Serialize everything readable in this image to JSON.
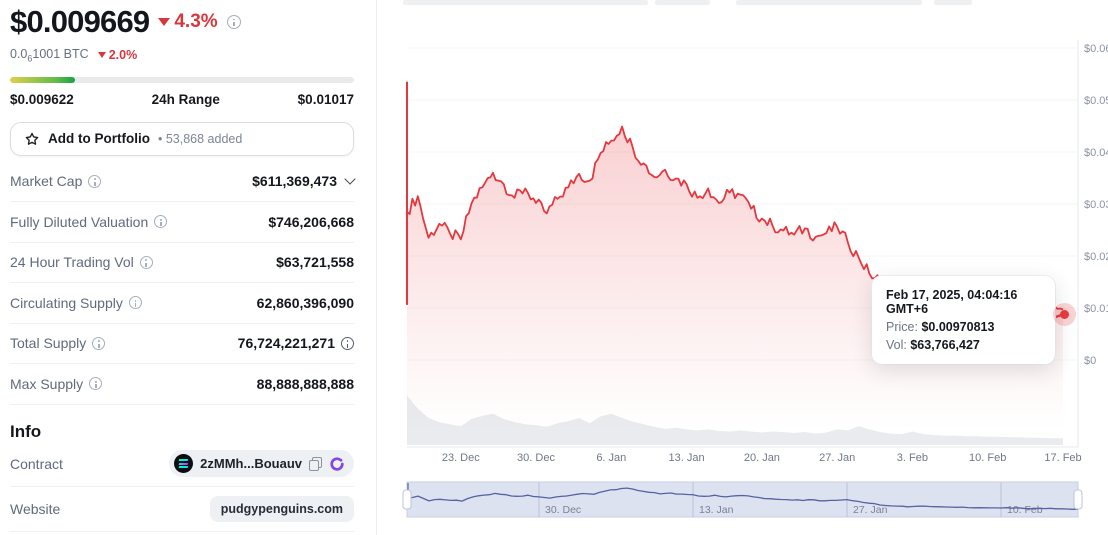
{
  "header": {
    "price": "$0.009669",
    "change_pct": "4.3%",
    "btc_price_lead": "0.0",
    "btc_price_sub": "6",
    "btc_price_tail": "1001 BTC",
    "btc_change_pct": "2.0%",
    "range_low": "$0.009622",
    "range_label": "24h Range",
    "range_high": "$0.01017",
    "range_fill_pct": 19
  },
  "portfolio": {
    "label": "Add to Portfolio",
    "added_count": "• 53,868 added"
  },
  "stats": {
    "rows": [
      {
        "label": "Market Cap",
        "value": "$611,369,473",
        "expandable": true
      },
      {
        "label": "Fully Diluted Valuation",
        "value": "$746,206,668"
      },
      {
        "label": "24 Hour Trading Vol",
        "value": "$63,721,558"
      },
      {
        "label": "Circulating Supply",
        "value": "62,860,396,090"
      },
      {
        "label": "Total Supply",
        "value": "76,724,221,271",
        "value_info": true
      },
      {
        "label": "Max Supply",
        "value": "88,888,888,888"
      }
    ]
  },
  "info_section": {
    "heading": "Info",
    "contract": {
      "label": "Contract",
      "address": "2zMMh...Bouauv"
    },
    "website": {
      "label": "Website",
      "value": "pudgypenguins.com"
    }
  },
  "tooltip": {
    "title": "Feb 17, 2025, 04:04:16 GMT+6",
    "price_label": "Price:",
    "price_value": "$0.00970813",
    "vol_label": "Vol:",
    "vol_value": "$63,766,427"
  },
  "icons": {
    "info": "circle-i-outline",
    "down_triangle": "triangle-down-red",
    "star": "star-outline",
    "chevron": "chevron-down",
    "solana": "solana-logo",
    "copy": "copy-outline",
    "explorer": "purple-swirl",
    "nav_handles": "drag-handles"
  },
  "chart_data": {
    "type": "line",
    "x_unit": "date",
    "dates": [
      "Dec 18",
      "Dec 19",
      "Dec 20",
      "Dec 21",
      "Dec 22",
      "Dec 23",
      "Dec 24",
      "Dec 25",
      "Dec 26",
      "Dec 27",
      "Dec 28",
      "Dec 29",
      "Dec 30",
      "Dec 31",
      "Jan 1",
      "Jan 2",
      "Jan 3",
      "Jan 4",
      "Jan 5",
      "Jan 6",
      "Jan 7",
      "Jan 8",
      "Jan 9",
      "Jan 10",
      "Jan 11",
      "Jan 12",
      "Jan 13",
      "Jan 14",
      "Jan 15",
      "Jan 16",
      "Jan 17",
      "Jan 18",
      "Jan 19",
      "Jan 20",
      "Jan 21",
      "Jan 22",
      "Jan 23",
      "Jan 24",
      "Jan 25",
      "Jan 26",
      "Jan 27",
      "Jan 28",
      "Jan 29",
      "Jan 30",
      "Jan 31",
      "Feb 1",
      "Feb 2",
      "Feb 3",
      "Feb 4",
      "Feb 5",
      "Feb 6",
      "Feb 7",
      "Feb 8",
      "Feb 9",
      "Feb 10",
      "Feb 11",
      "Feb 12",
      "Feb 13",
      "Feb 14",
      "Feb 15",
      "Feb 16",
      "Feb 17"
    ],
    "prices": [
      0.0285,
      0.0315,
      0.0235,
      0.0262,
      0.0243,
      0.0232,
      0.0301,
      0.0332,
      0.036,
      0.0338,
      0.0312,
      0.033,
      0.0302,
      0.0282,
      0.031,
      0.0332,
      0.0358,
      0.0345,
      0.0398,
      0.0422,
      0.0449,
      0.0408,
      0.0378,
      0.0352,
      0.0366,
      0.0349,
      0.0338,
      0.0312,
      0.033,
      0.0302,
      0.0322,
      0.0318,
      0.0291,
      0.0272,
      0.0258,
      0.0249,
      0.0241,
      0.0253,
      0.0237,
      0.0244,
      0.0256,
      0.0226,
      0.0197,
      0.0166,
      0.0152,
      0.0146,
      0.0141,
      0.0149,
      0.0139,
      0.0133,
      0.0128,
      0.0124,
      0.0121,
      0.0118,
      0.0116,
      0.0113,
      0.0111,
      0.0109,
      0.0106,
      0.0103,
      0.01,
      0.0097
    ],
    "volumes_rel": [
      0.95,
      0.7,
      0.52,
      0.44,
      0.4,
      0.36,
      0.5,
      0.56,
      0.6,
      0.5,
      0.44,
      0.4,
      0.38,
      0.35,
      0.42,
      0.46,
      0.52,
      0.42,
      0.55,
      0.6,
      0.52,
      0.45,
      0.4,
      0.35,
      0.31,
      0.33,
      0.3,
      0.28,
      0.3,
      0.27,
      0.26,
      0.28,
      0.26,
      0.24,
      0.26,
      0.25,
      0.23,
      0.25,
      0.22,
      0.24,
      0.3,
      0.28,
      0.36,
      0.3,
      0.25,
      0.22,
      0.21,
      0.26,
      0.21,
      0.19,
      0.18,
      0.18,
      0.17,
      0.17,
      0.16,
      0.16,
      0.15,
      0.15,
      0.14,
      0.14,
      0.13,
      0.13
    ],
    "launch_spike": {
      "high": 0.0535,
      "low": 0.0106
    },
    "ylim": [
      0,
      0.06
    ],
    "ylabel_ticks": [
      "$0.06",
      "$0.05",
      "$0.04",
      "$0.03",
      "$0.02",
      "$0.01",
      "$0"
    ],
    "x_ticks": [
      "23. Dec",
      "30. Dec",
      "6. Jan",
      "13. Jan",
      "20. Jan",
      "27. Jan",
      "3. Feb",
      "10. Feb",
      "17. Feb"
    ],
    "x_tick_day_indices": [
      5,
      12,
      19,
      26,
      33,
      40,
      47,
      54,
      61
    ],
    "nav_ticks": [
      "30. Dec",
      "13. Jan",
      "27. Jan",
      "10. Feb"
    ],
    "nav_tick_day_indices": [
      12,
      26,
      40,
      54
    ],
    "marker": {
      "date": "Feb 17",
      "price": 0.00970813
    },
    "grid": "horizontal-faint",
    "legend": "none",
    "line_color": "#e5383e",
    "fill_color_rgb": "230,57,63",
    "volume_color": "#e9ebee",
    "nav_bg_color": "#dde2f1",
    "nav_line_color": "#5563a0"
  }
}
